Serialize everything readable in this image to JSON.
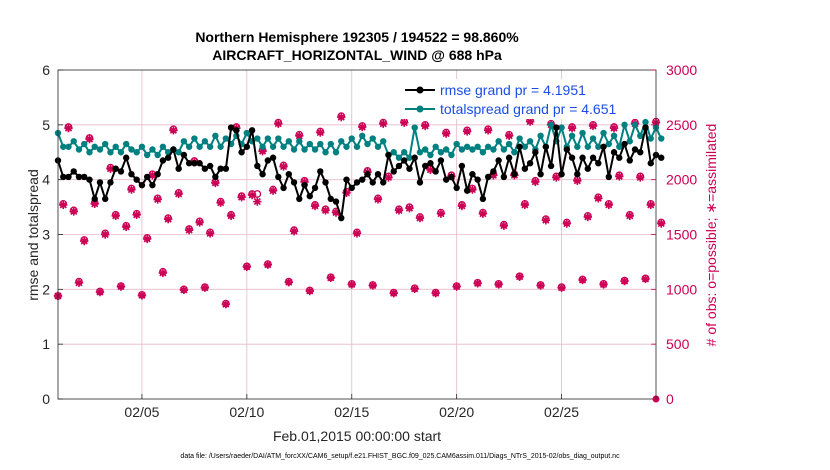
{
  "chart_data": {
    "type": "line",
    "title_line1": "Northern Hemisphere 192305 / 194522 = 98.860%",
    "title_line2": "AIRCRAFT_HORIZONTAL_WIND @ 688 hPa",
    "xlabel": "Feb.01,2015 00:00:00 start",
    "ylabel_left": "rmse and totalspread",
    "ylabel_right": "# of obs: o=possible; ∗=assimilated",
    "footnote": "data file: /Users/raeder/DAI/ATM_forcXX/CAM6_setup/f.e21.FHIST_BGC.f09_025.CAM6assim.011/Diags_NTrS_2015-02/obs_diag_output.nc",
    "xlim": [
      1,
      29.5
    ],
    "ylim_left": [
      0,
      6
    ],
    "ylim_right": [
      0,
      3000
    ],
    "x_ticks": [
      5,
      10,
      15,
      20,
      25
    ],
    "x_tick_labels": [
      "02/05",
      "02/10",
      "02/15",
      "02/20",
      "02/25"
    ],
    "y_ticks_left": [
      "0",
      "1",
      "2",
      "3",
      "4",
      "5",
      "6"
    ],
    "y_ticks_right": [
      "0",
      "500",
      "1000",
      "1500",
      "2000",
      "2500",
      "3000"
    ],
    "grid": true,
    "legend_position": "top-right",
    "series": [
      {
        "name": "rmse grand pr = 4.1951",
        "color": "#000000",
        "axis": "left",
        "x_start": 1.0,
        "x_step": 0.25,
        "values": [
          4.35,
          4.05,
          4.05,
          4.15,
          4.05,
          4.05,
          4.0,
          3.65,
          3.95,
          3.65,
          3.95,
          4.2,
          4.15,
          4.4,
          4.1,
          4.0,
          3.9,
          4.05,
          3.9,
          4.1,
          4.35,
          4.4,
          4.55,
          4.2,
          4.45,
          4.3,
          4.3,
          4.3,
          4.2,
          4.25,
          4.05,
          4.2,
          4.2,
          4.95,
          4.9,
          4.5,
          4.6,
          4.9,
          4.25,
          4.1,
          4.35,
          4.4,
          4.05,
          3.85,
          4.1,
          3.95,
          3.65,
          3.9,
          3.7,
          3.85,
          4.15,
          3.95,
          3.65,
          3.6,
          3.3,
          4.0,
          3.85,
          3.95,
          4.0,
          4.1,
          3.95,
          4.1,
          3.95,
          4.45,
          4.15,
          4.25,
          4.35,
          4.2,
          4.4,
          3.95,
          4.25,
          4.3,
          4.15,
          4.35,
          4.0,
          4.05,
          3.85,
          4.25,
          3.8,
          4.1,
          4.0,
          3.65,
          4.05,
          4.15,
          4.35,
          4.05,
          4.4,
          4.1,
          4.6,
          4.2,
          4.3,
          4.5,
          4.1,
          4.6,
          4.25,
          4.95,
          4.1,
          4.55,
          4.4,
          4.1,
          4.4,
          4.2,
          4.4,
          4.3,
          4.6,
          4.05,
          4.5,
          4.4,
          4.65,
          4.35,
          4.55,
          4.5,
          4.95,
          4.3,
          4.45,
          4.4
        ]
      },
      {
        "name": "totalspread grand pr = 4.651",
        "color": "#008080",
        "axis": "left",
        "x_start": 1.0,
        "x_step": 0.25,
        "values": [
          4.85,
          4.6,
          4.6,
          4.7,
          4.55,
          4.65,
          4.5,
          4.6,
          4.55,
          4.65,
          4.5,
          4.6,
          4.5,
          4.65,
          4.55,
          4.5,
          4.6,
          4.45,
          4.55,
          4.45,
          4.6,
          4.5,
          4.55,
          4.5,
          4.7,
          4.6,
          4.75,
          4.6,
          4.7,
          4.6,
          4.8,
          4.6,
          4.75,
          4.65,
          4.8,
          4.65,
          4.85,
          4.7,
          4.75,
          4.6,
          4.75,
          4.6,
          4.75,
          4.6,
          4.7,
          4.55,
          4.7,
          4.55,
          4.65,
          4.55,
          4.65,
          4.5,
          4.65,
          4.5,
          4.7,
          4.6,
          4.75,
          4.6,
          4.8,
          4.65,
          4.75,
          4.6,
          4.7,
          4.45,
          4.5,
          4.4,
          4.5,
          4.4,
          4.95,
          4.5,
          4.55,
          4.45,
          4.6,
          4.5,
          4.55,
          4.45,
          4.65,
          4.55,
          4.6,
          4.55,
          4.6,
          4.5,
          4.6,
          4.55,
          4.7,
          4.55,
          4.65,
          4.5,
          4.75,
          4.6,
          4.7,
          4.55,
          4.8,
          4.6,
          5.0,
          4.7,
          4.95,
          4.6,
          4.8,
          4.6,
          4.85,
          4.6,
          4.75,
          4.6,
          4.85,
          4.65,
          4.8,
          4.6,
          5.0,
          4.7,
          5.0,
          4.8,
          5.05,
          4.75,
          4.95,
          4.75
        ]
      },
      {
        "name": "# obs possible",
        "color": "#cc0055",
        "axis": "right",
        "marker": "o",
        "x_start": 1.0,
        "x_step": 0.25,
        "values": [
          940,
          1780,
          2480,
          1720,
          1070,
          1450,
          2380,
          1790,
          980,
          1510,
          2110,
          1680,
          1030,
          1580,
          1920,
          1690,
          950,
          1470,
          2050,
          1830,
          1160,
          1650,
          2460,
          1880,
          1000,
          1550,
          2170,
          1620,
          1020,
          1520,
          1980,
          1800,
          870,
          1680,
          2480,
          1850,
          1210,
          1870,
          1870,
          2270,
          1230,
          1910,
          2520,
          2130,
          1070,
          1540,
          2410,
          1990,
          990,
          1770,
          2440,
          1730,
          1110,
          1710,
          2580,
          1890,
          1050,
          1520,
          2490,
          2080,
          1040,
          1830,
          2520,
          2030,
          970,
          1730,
          2530,
          1750,
          1010,
          1660,
          2500,
          2100,
          970,
          1700,
          2430,
          2040,
          1030,
          1770,
          2450,
          1920,
          1060,
          1700,
          2460,
          2050,
          1050,
          1590,
          2410,
          2050,
          1120,
          1780,
          2540,
          1990,
          1040,
          1640,
          2510,
          2030,
          1020,
          1610,
          2480,
          2000,
          1090,
          1670,
          2500,
          1840,
          1050,
          1780,
          2480,
          2040,
          1080,
          1680,
          2520,
          2030,
          1100,
          1780,
          2530,
          1610
        ]
      },
      {
        "name": "# obs assimilated",
        "color": "#cc0055",
        "axis": "right",
        "marker": "*",
        "x_start": 1.0,
        "x_step": 0.25,
        "values": [
          940,
          1770,
          2470,
          1710,
          1060,
          1440,
          2370,
          1780,
          975,
          1500,
          2100,
          1670,
          1025,
          1570,
          1910,
          1680,
          945,
          1460,
          2040,
          1820,
          1150,
          1640,
          2450,
          1870,
          995,
          1540,
          2160,
          1610,
          1015,
          1510,
          1970,
          1790,
          865,
          1670,
          2470,
          1840,
          1205,
          1860,
          1800,
          2260,
          1225,
          1900,
          2510,
          2120,
          1065,
          1530,
          2400,
          1980,
          985,
          1760,
          2430,
          1720,
          1105,
          1700,
          2570,
          1880,
          1045,
          1510,
          2480,
          2070,
          1035,
          1820,
          2510,
          2020,
          965,
          1720,
          2520,
          1740,
          1005,
          1650,
          2490,
          2090,
          965,
          1690,
          2420,
          2030,
          1025,
          1760,
          2440,
          1910,
          1055,
          1690,
          2450,
          2040,
          1045,
          1580,
          2400,
          2040,
          1115,
          1770,
          2530,
          1980,
          1035,
          1630,
          2500,
          2020,
          1015,
          1600,
          2470,
          1990,
          1085,
          1660,
          2490,
          1830,
          1045,
          1770,
          2470,
          2030,
          1075,
          1670,
          2510,
          2020,
          1095,
          1770,
          2520,
          1600
        ]
      }
    ],
    "extra_right_marks": [
      {
        "x": 29.5,
        "value": 0
      }
    ]
  }
}
